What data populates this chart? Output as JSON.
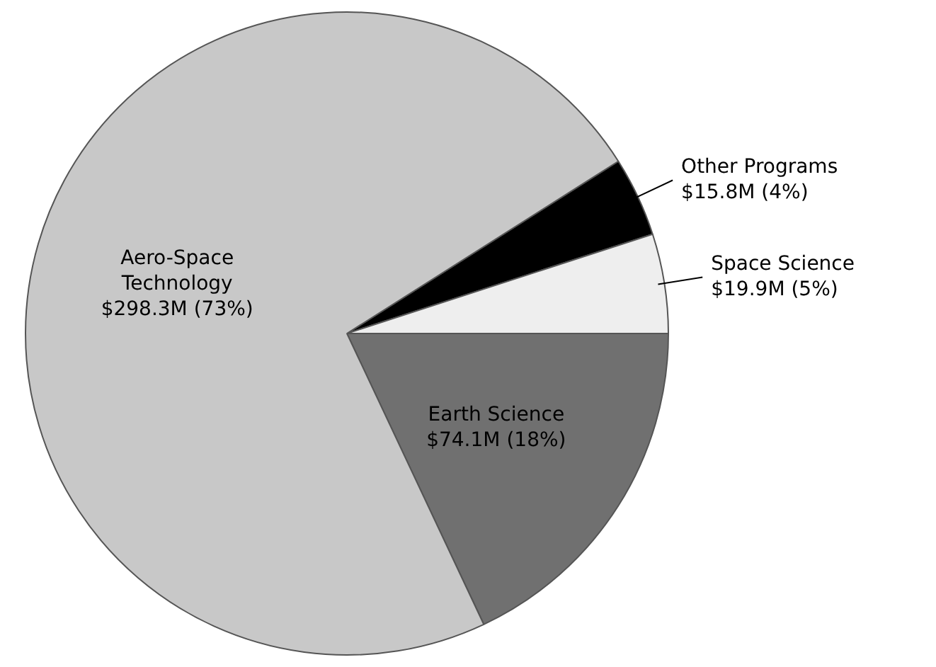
{
  "chart_data": {
    "type": "pie",
    "categories": [
      "Other Programs",
      "Space Science",
      "Earth Science",
      "Aero-Space Technology"
    ],
    "values": [
      4,
      5,
      18,
      73
    ],
    "colors": [
      "#000000",
      "#eeeeee",
      "#707070",
      "#c8c8c8"
    ],
    "value_labels": [
      "$15.8M (4%)",
      "$19.9M (5%)",
      "$74.1M (18%)",
      "$298.3M (73%)"
    ],
    "legend": false
  }
}
